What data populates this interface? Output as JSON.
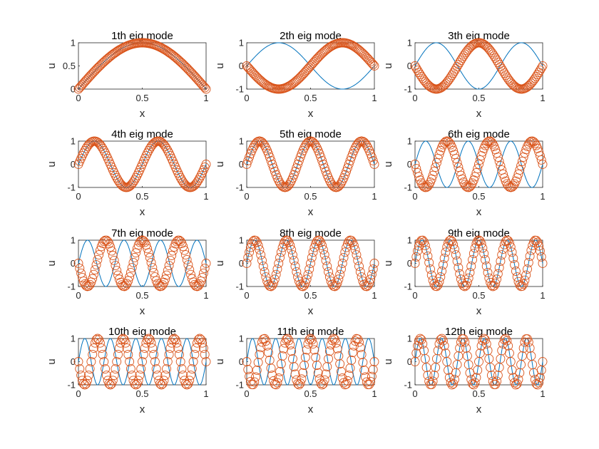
{
  "colors": {
    "line": "#0072BD",
    "marker": "#D95319",
    "axes": "#262626",
    "background": "#ffffff"
  },
  "chart_data": [
    {
      "type": "line",
      "mode": 1,
      "title": "1th eig mode",
      "xlabel": "x",
      "ylabel": "u",
      "xlim": [
        0,
        1
      ],
      "ylim": [
        0,
        1
      ],
      "xticks": [
        "0",
        "0.5",
        "1"
      ],
      "yticks": [
        "0",
        "0.5",
        "1"
      ],
      "series": [
        {
          "style": "line",
          "formula": "sin(1*pi*x)"
        },
        {
          "style": "circle-markers",
          "formula": "sin(1*pi*x)"
        }
      ]
    },
    {
      "type": "line",
      "mode": 2,
      "title": "2th eig mode",
      "xlabel": "x",
      "ylabel": "u",
      "xlim": [
        0,
        1
      ],
      "ylim": [
        -1,
        1
      ],
      "xticks": [
        "0",
        "0.5",
        "1"
      ],
      "yticks": [
        "-1",
        "0",
        "1"
      ],
      "series": [
        {
          "style": "line",
          "formula": "sin(2*pi*x)"
        },
        {
          "style": "circle-markers",
          "formula": "-sin(2*pi*x)"
        }
      ]
    },
    {
      "type": "line",
      "mode": 3,
      "title": "3th eig mode",
      "xlabel": "x",
      "ylabel": "u",
      "xlim": [
        0,
        1
      ],
      "ylim": [
        -1,
        1
      ],
      "xticks": [
        "0",
        "0.5",
        "1"
      ],
      "yticks": [
        "-1",
        "0",
        "1"
      ],
      "series": [
        {
          "style": "line",
          "formula": "sin(3*pi*x)"
        },
        {
          "style": "circle-markers",
          "formula": "-sin(3*pi*x)"
        }
      ]
    },
    {
      "type": "line",
      "mode": 4,
      "title": "4th eig mode",
      "xlabel": "x",
      "ylabel": "u",
      "xlim": [
        0,
        1
      ],
      "ylim": [
        -1,
        1
      ],
      "xticks": [
        "0",
        "0.5",
        "1"
      ],
      "yticks": [
        "-1",
        "0",
        "1"
      ],
      "series": [
        {
          "style": "line",
          "formula": "sin(4*pi*x)"
        },
        {
          "style": "circle-markers",
          "formula": "sin(4*pi*x)"
        }
      ]
    },
    {
      "type": "line",
      "mode": 5,
      "title": "5th eig mode",
      "xlabel": "x",
      "ylabel": "u",
      "xlim": [
        0,
        1
      ],
      "ylim": [
        -1,
        1
      ],
      "xticks": [
        "0",
        "0.5",
        "1"
      ],
      "yticks": [
        "-1",
        "0",
        "1"
      ],
      "series": [
        {
          "style": "line",
          "formula": "sin(5*pi*x)"
        },
        {
          "style": "circle-markers",
          "formula": "sin(5*pi*x)"
        }
      ]
    },
    {
      "type": "line",
      "mode": 6,
      "title": "6th eig mode",
      "xlabel": "x",
      "ylabel": "u",
      "xlim": [
        0,
        1
      ],
      "ylim": [
        -1,
        1
      ],
      "xticks": [
        "0",
        "0.5",
        "1"
      ],
      "yticks": [
        "-1",
        "0",
        "1"
      ],
      "series": [
        {
          "style": "line",
          "formula": "sin(6*pi*x)"
        },
        {
          "style": "circle-markers",
          "formula": "-sin(6*pi*x)"
        }
      ]
    },
    {
      "type": "line",
      "mode": 7,
      "title": "7th eig mode",
      "xlabel": "x",
      "ylabel": "u",
      "xlim": [
        0,
        1
      ],
      "ylim": [
        -1,
        1
      ],
      "xticks": [
        "0",
        "0.5",
        "1"
      ],
      "yticks": [
        "-1",
        "0",
        "1"
      ],
      "series": [
        {
          "style": "line",
          "formula": "sin(7*pi*x)"
        },
        {
          "style": "circle-markers",
          "formula": "-sin(7*pi*x)"
        }
      ]
    },
    {
      "type": "line",
      "mode": 8,
      "title": "8th eig mode",
      "xlabel": "x",
      "ylabel": "u",
      "xlim": [
        0,
        1
      ],
      "ylim": [
        -1,
        1
      ],
      "xticks": [
        "0",
        "0.5",
        "1"
      ],
      "yticks": [
        "-1",
        "0",
        "1"
      ],
      "series": [
        {
          "style": "line",
          "formula": "sin(8*pi*x)"
        },
        {
          "style": "circle-markers",
          "formula": "sin(8*pi*x)"
        }
      ]
    },
    {
      "type": "line",
      "mode": 9,
      "title": "9th eig mode",
      "xlabel": "x",
      "ylabel": "u",
      "xlim": [
        0,
        1
      ],
      "ylim": [
        -1,
        1
      ],
      "xticks": [
        "0",
        "0.5",
        "1"
      ],
      "yticks": [
        "-1",
        "0",
        "1"
      ],
      "series": [
        {
          "style": "line",
          "formula": "sin(9*pi*x)"
        },
        {
          "style": "circle-markers",
          "formula": "sin(9*pi*x)"
        }
      ]
    },
    {
      "type": "line",
      "mode": 10,
      "title": "10th eig mode",
      "xlabel": "x",
      "ylabel": "u",
      "xlim": [
        0,
        1
      ],
      "ylim": [
        -1,
        1
      ],
      "xticks": [
        "0",
        "0.5",
        "1"
      ],
      "yticks": [
        "-1",
        "0",
        "1"
      ],
      "series": [
        {
          "style": "line",
          "formula": "sin(10*pi*x)"
        },
        {
          "style": "circle-markers",
          "formula": "-sin(10*pi*x)"
        }
      ]
    },
    {
      "type": "line",
      "mode": 11,
      "title": "11th eig mode",
      "xlabel": "x",
      "ylabel": "u",
      "xlim": [
        0,
        1
      ],
      "ylim": [
        -1,
        1
      ],
      "xticks": [
        "0",
        "0.5",
        "1"
      ],
      "yticks": [
        "-1",
        "0",
        "1"
      ],
      "series": [
        {
          "style": "line",
          "formula": "sin(11*pi*x)"
        },
        {
          "style": "circle-markers",
          "formula": "-sin(11*pi*x)"
        }
      ]
    },
    {
      "type": "line",
      "mode": 12,
      "title": "12th eig mode",
      "xlabel": "x",
      "ylabel": "u",
      "xlim": [
        0,
        1
      ],
      "ylim": [
        -1,
        1
      ],
      "xticks": [
        "0",
        "0.5",
        "1"
      ],
      "yticks": [
        "-1",
        "0",
        "1"
      ],
      "series": [
        {
          "style": "line",
          "formula": "sin(12*pi*x)"
        },
        {
          "style": "circle-markers",
          "formula": "sin(12*pi*x)"
        }
      ]
    }
  ]
}
